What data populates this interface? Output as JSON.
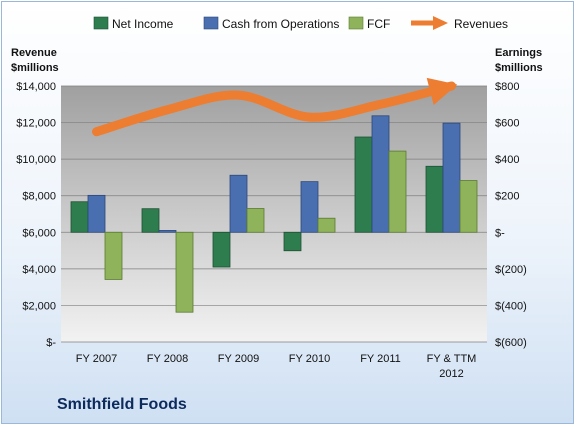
{
  "company_name": "Smithfield Foods",
  "colors": {
    "net_income": "#2e7d4f",
    "cash_from_operations": "#4a6fb0",
    "fcf": "#8fb35a",
    "revenues": "#ed7d31"
  },
  "chart_data": {
    "type": "bar",
    "categories": [
      "FY 2007",
      "FY 2008",
      "FY 2009",
      "FY 2010",
      "FY 2011",
      "FY & TTM 2012"
    ],
    "series": [
      {
        "name": "Net Income",
        "axis": "right",
        "values": [
          167,
          129,
          -190,
          -101,
          521,
          361
        ]
      },
      {
        "name": "Cash from Operations",
        "axis": "right",
        "values": [
          202,
          10,
          312,
          277,
          637,
          597
        ]
      },
      {
        "name": "FCF",
        "axis": "right",
        "values": [
          -258,
          -437,
          130,
          77,
          444,
          283
        ]
      }
    ],
    "line_series": [
      {
        "name": "Revenues",
        "axis": "left",
        "type": "line-arrow",
        "values": [
          11500,
          12700,
          13500,
          12300,
          13000,
          14000
        ]
      }
    ],
    "left_axis": {
      "label_line1": "Revenue",
      "label_line2": "$millions",
      "ylim": [
        0,
        14000
      ],
      "ticks": [
        "$-",
        "$2,000",
        "$4,000",
        "$6,000",
        "$8,000",
        "$10,000",
        "$12,000",
        "$14,000"
      ]
    },
    "right_axis": {
      "label_line1": "Earnings",
      "label_line2": "$millions",
      "ylim": [
        -600,
        800
      ],
      "ticks": [
        "$(600)",
        "$(400)",
        "$(200)",
        "$-",
        "$200",
        "$400",
        "$600",
        "$800"
      ]
    },
    "x_tick_labels": [
      [
        "FY 2007"
      ],
      [
        "FY 2008"
      ],
      [
        "FY 2009"
      ],
      [
        "FY 2010"
      ],
      [
        "FY 2011"
      ],
      [
        "FY & TTM",
        "2012"
      ]
    ],
    "grid": true,
    "legend_position": "top"
  }
}
